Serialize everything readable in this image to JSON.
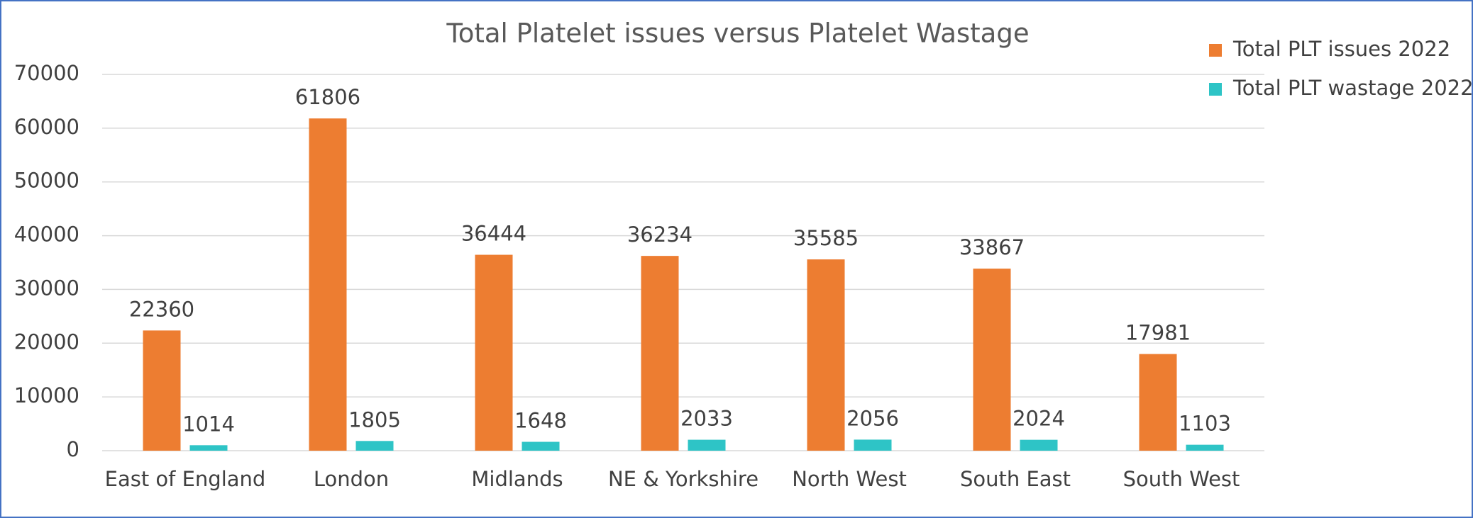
{
  "chart_data": {
    "type": "bar",
    "title": "Total Platelet issues versus Platelet Wastage",
    "categories": [
      "East of England",
      "London",
      "Midlands",
      "NE & Yorkshire",
      "North West",
      "South East",
      "South West"
    ],
    "series": [
      {
        "name": "Total PLT issues 2022",
        "color": "#ed7d31",
        "values": [
          22360,
          61806,
          36444,
          36234,
          35585,
          33867,
          17981
        ]
      },
      {
        "name": "Total PLT wastage 2022",
        "color": "#2ec4c6",
        "values": [
          1014,
          1805,
          1648,
          2033,
          2056,
          2024,
          1103
        ]
      }
    ],
    "ylim": [
      0,
      70000
    ],
    "yticks": [
      0,
      10000,
      20000,
      30000,
      40000,
      50000,
      60000,
      70000
    ],
    "grid": true,
    "legend": "top-right"
  }
}
